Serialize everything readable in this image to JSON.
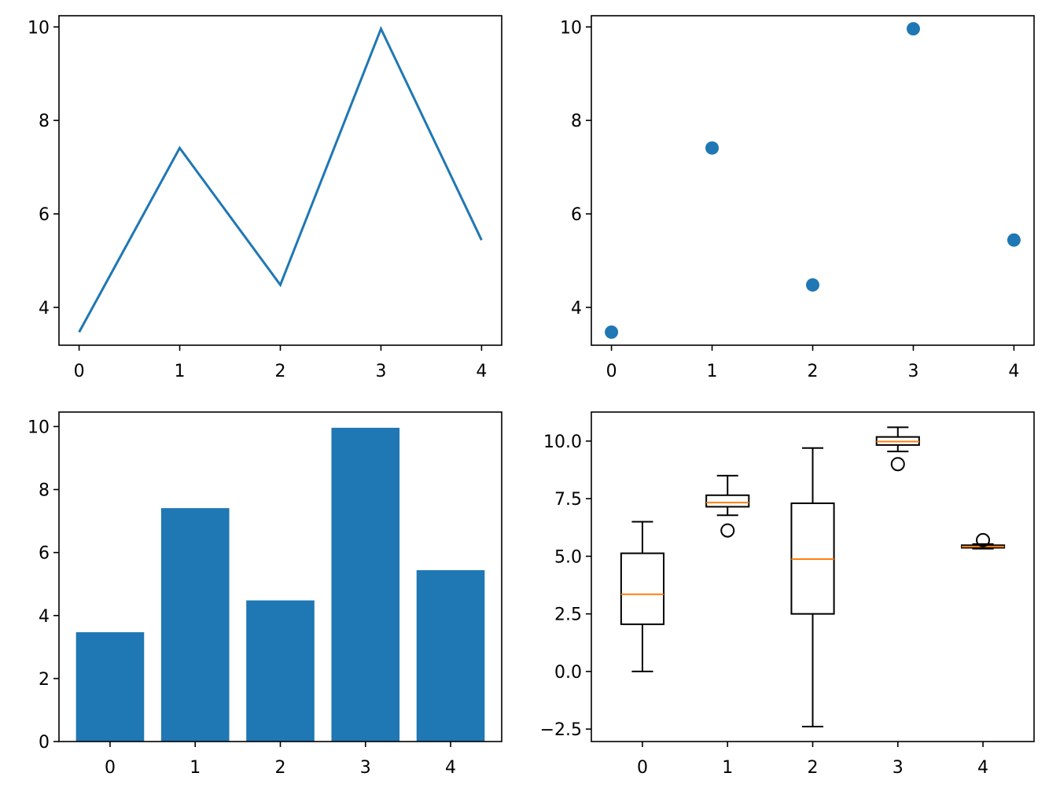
{
  "colors": {
    "primary": "#1f77b4",
    "median": "#ff7f0e",
    "axis": "#000000"
  },
  "chart_data": [
    {
      "type": "line",
      "x": [
        0,
        1,
        2,
        3,
        4
      ],
      "values": [
        3.47,
        7.41,
        4.48,
        9.96,
        5.44
      ],
      "xlim": [
        -0.2,
        4.2
      ],
      "ylim": [
        3.19,
        10.24
      ],
      "xticks": [
        0,
        1,
        2,
        3,
        4
      ],
      "yticks": [
        4,
        6,
        8,
        10
      ],
      "grid": false
    },
    {
      "type": "scatter",
      "x": [
        0,
        1,
        2,
        3,
        4
      ],
      "values": [
        3.47,
        7.41,
        4.48,
        9.96,
        5.44
      ],
      "xlim": [
        -0.2,
        4.2
      ],
      "ylim": [
        3.19,
        10.24
      ],
      "xticks": [
        0,
        1,
        2,
        3,
        4
      ],
      "yticks": [
        4,
        6,
        8,
        10
      ],
      "grid": false
    },
    {
      "type": "bar",
      "categories": [
        "0",
        "1",
        "2",
        "3",
        "4"
      ],
      "values": [
        3.47,
        7.41,
        4.48,
        9.96,
        5.44
      ],
      "xlim": [
        -0.6,
        4.6
      ],
      "ylim": [
        0,
        10.46
      ],
      "yticks": [
        0,
        2,
        4,
        6,
        8,
        10
      ],
      "grid": false
    },
    {
      "type": "box",
      "categories": [
        "0",
        "1",
        "2",
        "3",
        "4"
      ],
      "boxes": [
        {
          "whisker_low": 0.0,
          "q1": 2.05,
          "median": 3.35,
          "q3": 5.13,
          "whisker_high": 6.5,
          "outliers": []
        },
        {
          "whisker_low": 6.78,
          "q1": 7.15,
          "median": 7.33,
          "q3": 7.65,
          "whisker_high": 8.5,
          "outliers": [
            6.12
          ]
        },
        {
          "whisker_low": -2.39,
          "q1": 2.5,
          "median": 4.88,
          "q3": 7.3,
          "whisker_high": 9.7,
          "outliers": []
        },
        {
          "whisker_low": 9.55,
          "q1": 9.83,
          "median": 9.98,
          "q3": 10.18,
          "whisker_high": 10.6,
          "outliers": [
            9.0
          ]
        },
        {
          "whisker_low": 5.33,
          "q1": 5.37,
          "median": 5.42,
          "q3": 5.48,
          "whisker_high": 5.53,
          "outliers": [
            5.7
          ]
        }
      ],
      "xlim": [
        0.4,
        5.6
      ],
      "ylim": [
        -3.04,
        11.26
      ],
      "yticks": [
        "−2.5",
        "0.0",
        "2.5",
        "5.0",
        "7.5",
        "10.0"
      ],
      "ytick_values": [
        -2.5,
        0,
        2.5,
        5,
        7.5,
        10
      ],
      "grid": false
    }
  ]
}
